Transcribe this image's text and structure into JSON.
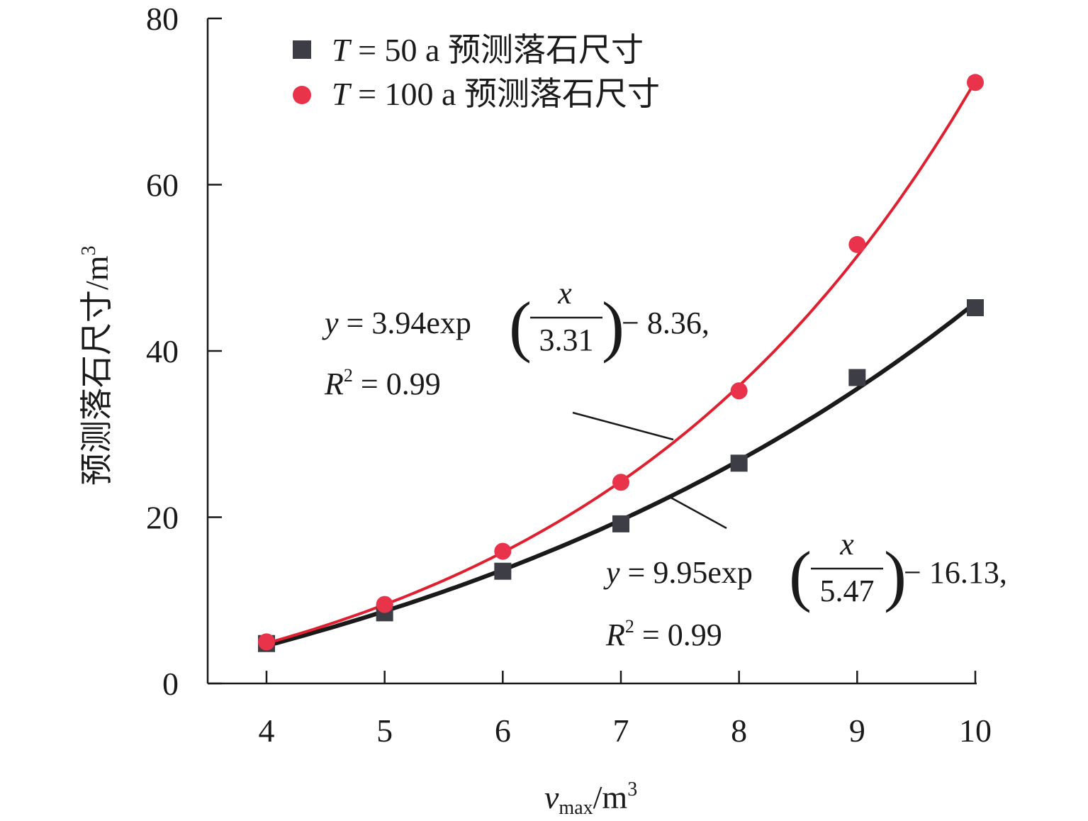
{
  "chart_data": {
    "type": "scatter",
    "xlabel": {
      "main": "v",
      "sub": "max",
      "unit": "/m",
      "sup": "3"
    },
    "ylabel": {
      "main": "预测落石尺寸/m",
      "sup": "3"
    },
    "xlim": [
      4,
      10
    ],
    "ylim": [
      0,
      80
    ],
    "xticks": [
      4,
      5,
      6,
      7,
      8,
      9,
      10
    ],
    "yticks": [
      0,
      20,
      40,
      60,
      80
    ],
    "grid": false,
    "legend_position": "top-left",
    "series": [
      {
        "name": "T = 50 a 预测落石尺寸",
        "legend_italic": "T",
        "legend_rest": " = 50 a 预测落石尺寸",
        "marker": "square",
        "color": "#3d3d45",
        "line_color": "#1a1a1a",
        "x": [
          4,
          5,
          6,
          7,
          8,
          9,
          10
        ],
        "y": [
          4.8,
          8.5,
          13.5,
          19.2,
          26.5,
          36.8,
          45.2
        ],
        "fit": {
          "a": 9.95,
          "b": 5.47,
          "c": -16.13
        }
      },
      {
        "name": "T = 100 a 预测落石尺寸",
        "legend_italic": "T",
        "legend_rest": " = 100 a 预测落石尺寸",
        "marker": "circle",
        "color": "#e8334a",
        "line_color": "#e02030",
        "x": [
          4,
          5,
          6,
          7,
          8,
          9,
          10
        ],
        "y": [
          5.0,
          9.5,
          15.9,
          24.2,
          35.2,
          52.8,
          72.3
        ],
        "fit": {
          "a": 3.94,
          "b": 3.31,
          "c": -8.36
        }
      }
    ],
    "annotations": [
      {
        "var": "y",
        "eq_left": " = 3.94exp",
        "num": "x",
        "den": "3.31",
        "eq_right": " − 8.36,",
        "r2_var": "R",
        "r2_sup": "2",
        "r2_rest": " = 0.99"
      },
      {
        "var": "y",
        "eq_left": " = 9.95exp",
        "num": "x",
        "den": "5.47",
        "eq_right": " − 16.13,",
        "r2_var": "R",
        "r2_sup": "2",
        "r2_rest": " = 0.99"
      }
    ]
  }
}
